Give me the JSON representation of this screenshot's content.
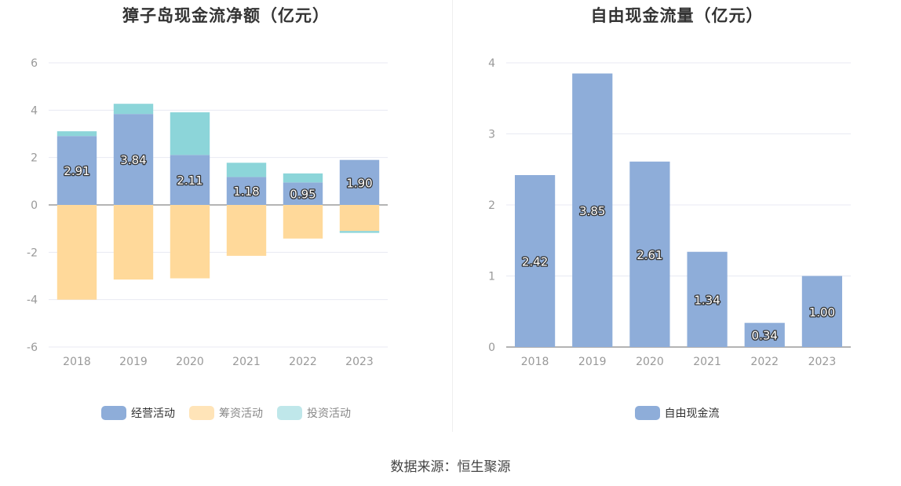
{
  "colors": {
    "operating": "#8eadd9",
    "financing": "#ffd99a",
    "investing": "#8cd5d9",
    "fcf": "#8eadd9",
    "grid": "#e8eaf3",
    "axis_text": "#999999",
    "zero_line": "#888888"
  },
  "source": "数据来源：恒生聚源",
  "chart_data": [
    {
      "type": "bar",
      "stacked": true,
      "title": "獐子岛现金流净额（亿元）",
      "categories": [
        "2018",
        "2019",
        "2020",
        "2021",
        "2022",
        "2023"
      ],
      "ylim": [
        -6,
        6
      ],
      "yticks": [
        -6,
        -4,
        -2,
        0,
        2,
        4,
        6
      ],
      "grid": true,
      "legend_position": "bottom",
      "series": [
        {
          "name": "经营活动",
          "color_key": "operating",
          "values": [
            2.91,
            3.84,
            2.11,
            1.18,
            0.95,
            1.9
          ],
          "labels": [
            "2.91",
            "3.84",
            "2.11",
            "1.18",
            "0.95",
            "1.90"
          ]
        },
        {
          "name": "筹资活动",
          "color_key": "financing",
          "values": [
            -4.0,
            -3.15,
            -3.1,
            -2.15,
            -1.42,
            -1.1
          ]
        },
        {
          "name": "投资活动",
          "color_key": "investing",
          "values": [
            0.2,
            0.43,
            1.8,
            0.6,
            0.38,
            -0.08
          ]
        }
      ]
    },
    {
      "type": "bar",
      "title": "自由现金流量（亿元）",
      "categories": [
        "2018",
        "2019",
        "2020",
        "2021",
        "2022",
        "2023"
      ],
      "ylim": [
        0,
        4
      ],
      "yticks": [
        0,
        1,
        2,
        3,
        4
      ],
      "grid": true,
      "legend_position": "bottom",
      "series": [
        {
          "name": "自由现金流",
          "color_key": "fcf",
          "values": [
            2.42,
            3.85,
            2.61,
            1.34,
            0.34,
            1.0
          ],
          "labels": [
            "2.42",
            "3.85",
            "2.61",
            "1.34",
            "0.34",
            "1.00"
          ]
        }
      ]
    }
  ]
}
